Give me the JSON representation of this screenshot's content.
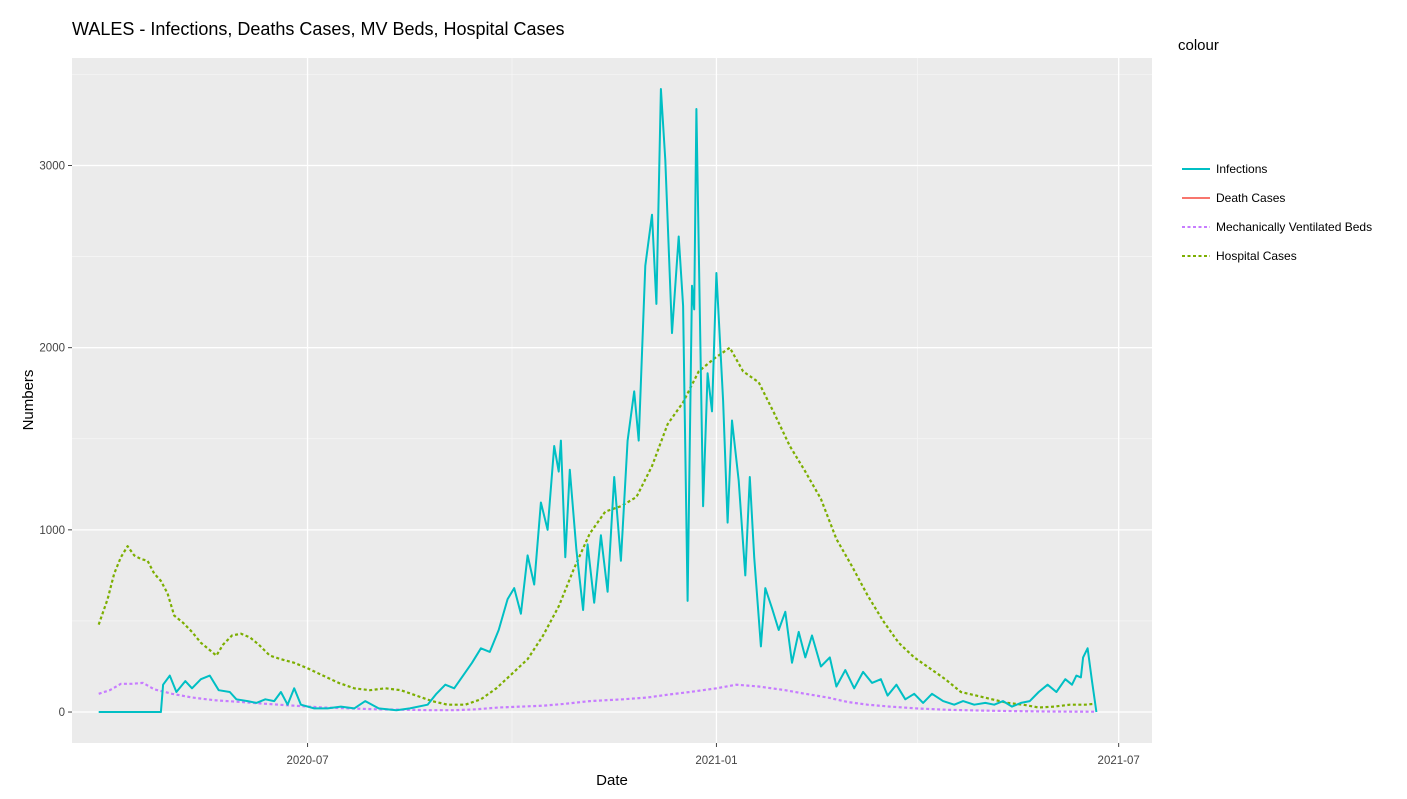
{
  "chart_data": {
    "type": "line",
    "title": "WALES - Infections, Deaths Cases, MV Beds, Hospital Cases",
    "xlabel": "Date",
    "ylabel": "Numbers",
    "x_ticks": [
      "2020-07",
      "2021-01",
      "2021-07"
    ],
    "y_ticks": [
      0,
      1000,
      2000,
      3000
    ],
    "ylim": [
      -170,
      3590
    ],
    "xlim": [
      "2020-03-17",
      "2021-07-16"
    ],
    "grid": true,
    "legend": {
      "title": "colour",
      "position": "right"
    },
    "series": [
      {
        "name": "Infections",
        "color": "#00bfc4",
        "dash": "solid",
        "points": [
          [
            "2020-03-29",
            0
          ],
          [
            "2020-04-26",
            0
          ],
          [
            "2020-04-27",
            150
          ],
          [
            "2020-04-30",
            200
          ],
          [
            "2020-05-03",
            110
          ],
          [
            "2020-05-07",
            170
          ],
          [
            "2020-05-10",
            130
          ],
          [
            "2020-05-14",
            180
          ],
          [
            "2020-05-18",
            200
          ],
          [
            "2020-05-22",
            120
          ],
          [
            "2020-05-27",
            110
          ],
          [
            "2020-05-30",
            70
          ],
          [
            "2020-06-04",
            60
          ],
          [
            "2020-06-08",
            50
          ],
          [
            "2020-06-12",
            70
          ],
          [
            "2020-06-16",
            60
          ],
          [
            "2020-06-19",
            110
          ],
          [
            "2020-06-22",
            40
          ],
          [
            "2020-06-25",
            130
          ],
          [
            "2020-06-28",
            40
          ],
          [
            "2020-07-04",
            20
          ],
          [
            "2020-07-10",
            20
          ],
          [
            "2020-07-16",
            30
          ],
          [
            "2020-07-22",
            20
          ],
          [
            "2020-07-27",
            60
          ],
          [
            "2020-08-02",
            20
          ],
          [
            "2020-08-10",
            10
          ],
          [
            "2020-08-16",
            20
          ],
          [
            "2020-08-24",
            40
          ],
          [
            "2020-08-28",
            100
          ],
          [
            "2020-09-01",
            150
          ],
          [
            "2020-09-05",
            130
          ],
          [
            "2020-09-09",
            200
          ],
          [
            "2020-09-13",
            270
          ],
          [
            "2020-09-17",
            350
          ],
          [
            "2020-09-21",
            330
          ],
          [
            "2020-09-25",
            450
          ],
          [
            "2020-09-29",
            620
          ],
          [
            "2020-10-02",
            680
          ],
          [
            "2020-10-05",
            540
          ],
          [
            "2020-10-08",
            860
          ],
          [
            "2020-10-11",
            700
          ],
          [
            "2020-10-14",
            1150
          ],
          [
            "2020-10-17",
            1000
          ],
          [
            "2020-10-20",
            1460
          ],
          [
            "2020-10-22",
            1320
          ],
          [
            "2020-10-23",
            1490
          ],
          [
            "2020-10-25",
            850
          ],
          [
            "2020-10-27",
            1330
          ],
          [
            "2020-10-30",
            890
          ],
          [
            "2020-11-02",
            560
          ],
          [
            "2020-11-04",
            920
          ],
          [
            "2020-11-07",
            600
          ],
          [
            "2020-11-10",
            970
          ],
          [
            "2020-11-13",
            660
          ],
          [
            "2020-11-16",
            1290
          ],
          [
            "2020-11-19",
            830
          ],
          [
            "2020-11-22",
            1490
          ],
          [
            "2020-11-25",
            1760
          ],
          [
            "2020-11-27",
            1490
          ],
          [
            "2020-11-30",
            2450
          ],
          [
            "2020-12-03",
            2730
          ],
          [
            "2020-12-05",
            2240
          ],
          [
            "2020-12-07",
            3420
          ],
          [
            "2020-12-09",
            3030
          ],
          [
            "2020-12-12",
            2080
          ],
          [
            "2020-12-15",
            2610
          ],
          [
            "2020-12-17",
            2230
          ],
          [
            "2020-12-19",
            610
          ],
          [
            "2020-12-21",
            2340
          ],
          [
            "2020-12-22",
            2210
          ],
          [
            "2020-12-23",
            3310
          ],
          [
            "2020-12-26",
            1130
          ],
          [
            "2020-12-28",
            1860
          ],
          [
            "2020-12-30",
            1650
          ],
          [
            "2021-01-01",
            2410
          ],
          [
            "2021-01-04",
            1710
          ],
          [
            "2021-01-06",
            1040
          ],
          [
            "2021-01-08",
            1600
          ],
          [
            "2021-01-11",
            1270
          ],
          [
            "2021-01-14",
            750
          ],
          [
            "2021-01-16",
            1290
          ],
          [
            "2021-01-18",
            850
          ],
          [
            "2021-01-21",
            360
          ],
          [
            "2021-01-23",
            680
          ],
          [
            "2021-01-26",
            570
          ],
          [
            "2021-01-29",
            450
          ],
          [
            "2021-02-01",
            550
          ],
          [
            "2021-02-04",
            270
          ],
          [
            "2021-02-07",
            440
          ],
          [
            "2021-02-10",
            300
          ],
          [
            "2021-02-13",
            420
          ],
          [
            "2021-02-17",
            250
          ],
          [
            "2021-02-21",
            300
          ],
          [
            "2021-02-24",
            140
          ],
          [
            "2021-02-28",
            230
          ],
          [
            "2021-03-04",
            130
          ],
          [
            "2021-03-08",
            220
          ],
          [
            "2021-03-12",
            160
          ],
          [
            "2021-03-16",
            180
          ],
          [
            "2021-03-19",
            90
          ],
          [
            "2021-03-23",
            150
          ],
          [
            "2021-03-27",
            70
          ],
          [
            "2021-03-31",
            100
          ],
          [
            "2021-04-04",
            50
          ],
          [
            "2021-04-08",
            100
          ],
          [
            "2021-04-13",
            60
          ],
          [
            "2021-04-18",
            40
          ],
          [
            "2021-04-22",
            60
          ],
          [
            "2021-04-27",
            40
          ],
          [
            "2021-05-02",
            50
          ],
          [
            "2021-05-06",
            40
          ],
          [
            "2021-05-10",
            60
          ],
          [
            "2021-05-14",
            30
          ],
          [
            "2021-05-18",
            50
          ],
          [
            "2021-05-22",
            60
          ],
          [
            "2021-05-26",
            110
          ],
          [
            "2021-05-30",
            150
          ],
          [
            "2021-06-03",
            110
          ],
          [
            "2021-06-07",
            180
          ],
          [
            "2021-06-10",
            150
          ],
          [
            "2021-06-12",
            200
          ],
          [
            "2021-06-14",
            190
          ],
          [
            "2021-06-15",
            300
          ],
          [
            "2021-06-17",
            350
          ],
          [
            "2021-06-19",
            170
          ],
          [
            "2021-06-21",
            0
          ]
        ]
      },
      {
        "name": "Death Cases",
        "color": "#f8766d",
        "dash": "solid",
        "points": []
      },
      {
        "name": "Mechanically Ventilated Beds",
        "color": "#c77cff",
        "dash": "dotted",
        "points": [
          [
            "2020-03-29",
            100
          ],
          [
            "2020-04-03",
            120
          ],
          [
            "2020-04-08",
            155
          ],
          [
            "2020-04-13",
            155
          ],
          [
            "2020-04-18",
            160
          ],
          [
            "2020-04-23",
            125
          ],
          [
            "2020-05-01",
            100
          ],
          [
            "2020-05-10",
            80
          ],
          [
            "2020-05-20",
            65
          ],
          [
            "2020-06-01",
            55
          ],
          [
            "2020-06-12",
            45
          ],
          [
            "2020-06-25",
            35
          ],
          [
            "2020-07-08",
            25
          ],
          [
            "2020-07-20",
            20
          ],
          [
            "2020-08-01",
            15
          ],
          [
            "2020-08-15",
            12
          ],
          [
            "2020-08-25",
            10
          ],
          [
            "2020-09-05",
            10
          ],
          [
            "2020-09-15",
            15
          ],
          [
            "2020-09-25",
            25
          ],
          [
            "2020-10-05",
            30
          ],
          [
            "2020-10-15",
            35
          ],
          [
            "2020-10-25",
            45
          ],
          [
            "2020-11-05",
            60
          ],
          [
            "2020-11-20",
            70
          ],
          [
            "2020-12-01",
            80
          ],
          [
            "2020-12-10",
            95
          ],
          [
            "2020-12-20",
            110
          ],
          [
            "2021-01-01",
            130
          ],
          [
            "2021-01-10",
            150
          ],
          [
            "2021-01-20",
            140
          ],
          [
            "2021-02-01",
            120
          ],
          [
            "2021-02-10",
            100
          ],
          [
            "2021-02-20",
            80
          ],
          [
            "2021-03-01",
            55
          ],
          [
            "2021-03-10",
            40
          ],
          [
            "2021-03-20",
            30
          ],
          [
            "2021-04-01",
            20
          ],
          [
            "2021-04-15",
            12
          ],
          [
            "2021-05-01",
            8
          ],
          [
            "2021-05-15",
            5
          ],
          [
            "2021-06-01",
            3
          ],
          [
            "2021-06-20",
            2
          ]
        ]
      },
      {
        "name": "Hospital Cases",
        "color": "#7cae00",
        "dash": "dotted",
        "points": [
          [
            "2020-03-29",
            480
          ],
          [
            "2020-04-02",
            620
          ],
          [
            "2020-04-05",
            760
          ],
          [
            "2020-04-08",
            850
          ],
          [
            "2020-04-11",
            910
          ],
          [
            "2020-04-14",
            860
          ],
          [
            "2020-04-17",
            840
          ],
          [
            "2020-04-20",
            830
          ],
          [
            "2020-04-23",
            760
          ],
          [
            "2020-04-26",
            720
          ],
          [
            "2020-04-29",
            650
          ],
          [
            "2020-05-02",
            530
          ],
          [
            "2020-05-06",
            490
          ],
          [
            "2020-05-10",
            440
          ],
          [
            "2020-05-14",
            380
          ],
          [
            "2020-05-18",
            340
          ],
          [
            "2020-05-21",
            310
          ],
          [
            "2020-05-24",
            370
          ],
          [
            "2020-05-28",
            420
          ],
          [
            "2020-06-01",
            430
          ],
          [
            "2020-06-05",
            410
          ],
          [
            "2020-06-09",
            370
          ],
          [
            "2020-06-14",
            310
          ],
          [
            "2020-06-19",
            290
          ],
          [
            "2020-06-25",
            270
          ],
          [
            "2020-07-01",
            240
          ],
          [
            "2020-07-08",
            200
          ],
          [
            "2020-07-15",
            160
          ],
          [
            "2020-07-22",
            130
          ],
          [
            "2020-07-29",
            120
          ],
          [
            "2020-08-05",
            130
          ],
          [
            "2020-08-12",
            120
          ],
          [
            "2020-08-19",
            90
          ],
          [
            "2020-08-26",
            60
          ],
          [
            "2020-09-02",
            40
          ],
          [
            "2020-09-10",
            40
          ],
          [
            "2020-09-17",
            70
          ],
          [
            "2020-09-24",
            130
          ],
          [
            "2020-10-01",
            210
          ],
          [
            "2020-10-08",
            290
          ],
          [
            "2020-10-15",
            420
          ],
          [
            "2020-10-22",
            580
          ],
          [
            "2020-10-29",
            790
          ],
          [
            "2020-11-05",
            980
          ],
          [
            "2020-11-12",
            1100
          ],
          [
            "2020-11-19",
            1130
          ],
          [
            "2020-11-26",
            1180
          ],
          [
            "2020-12-03",
            1350
          ],
          [
            "2020-12-10",
            1580
          ],
          [
            "2020-12-17",
            1700
          ],
          [
            "2020-12-24",
            1870
          ],
          [
            "2020-12-31",
            1940
          ],
          [
            "2021-01-07",
            2000
          ],
          [
            "2021-01-13",
            1870
          ],
          [
            "2021-01-20",
            1810
          ],
          [
            "2021-01-27",
            1640
          ],
          [
            "2021-02-03",
            1460
          ],
          [
            "2021-02-10",
            1320
          ],
          [
            "2021-02-17",
            1170
          ],
          [
            "2021-02-24",
            950
          ],
          [
            "2021-03-03",
            800
          ],
          [
            "2021-03-10",
            640
          ],
          [
            "2021-03-17",
            500
          ],
          [
            "2021-03-24",
            380
          ],
          [
            "2021-03-31",
            300
          ],
          [
            "2021-04-07",
            240
          ],
          [
            "2021-04-14",
            180
          ],
          [
            "2021-04-21",
            110
          ],
          [
            "2021-04-28",
            90
          ],
          [
            "2021-05-05",
            70
          ],
          [
            "2021-05-12",
            50
          ],
          [
            "2021-05-19",
            40
          ],
          [
            "2021-05-26",
            25
          ],
          [
            "2021-06-02",
            30
          ],
          [
            "2021-06-09",
            40
          ],
          [
            "2021-06-16",
            40
          ],
          [
            "2021-06-20",
            45
          ]
        ]
      }
    ]
  }
}
